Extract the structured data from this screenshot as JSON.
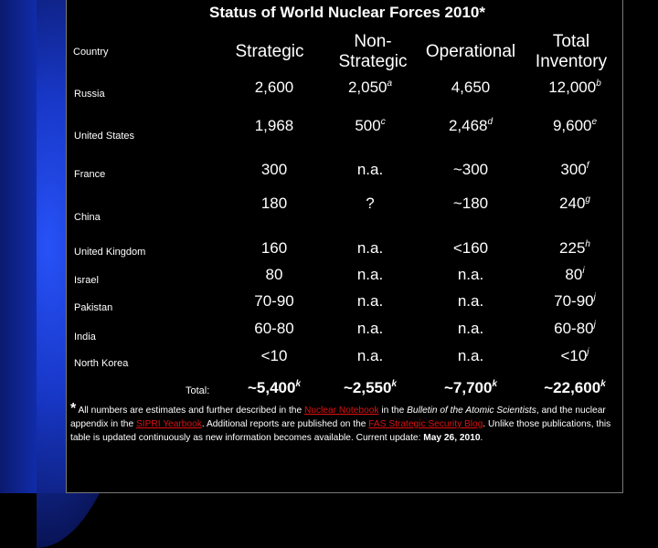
{
  "title": "Status of World Nuclear Forces 2010*",
  "columns": {
    "country": "Country",
    "strategic": "Strategic",
    "nonstrategic_1": "Non-",
    "nonstrategic_2": "Strategic",
    "operational": "Operational",
    "total_1": "Total",
    "total_2": "Inventory"
  },
  "rows": [
    {
      "country": "Russia",
      "strategic": "2,600",
      "nonstrategic": "2,050",
      "nonstrategic_note": "a",
      "operational": "4,650",
      "operational_note": "",
      "total": "12,000",
      "total_note": "b"
    },
    {
      "country": "United States",
      "strategic": "1,968",
      "nonstrategic": "500",
      "nonstrategic_note": "c",
      "operational": "2,468",
      "operational_note": "d",
      "total": "9,600",
      "total_note": "e"
    },
    {
      "country": "France",
      "strategic": "300",
      "nonstrategic": "n.a.",
      "nonstrategic_note": "",
      "operational": "~300",
      "operational_note": "",
      "total": "300",
      "total_note": "f"
    },
    {
      "country": "China",
      "strategic": "180",
      "nonstrategic": "?",
      "nonstrategic_note": "",
      "operational": "~180",
      "operational_note": "",
      "total": "240",
      "total_note": "g"
    },
    {
      "country": "United Kingdom",
      "strategic": "160",
      "nonstrategic": "n.a.",
      "nonstrategic_note": "",
      "operational": "<160",
      "operational_note": "",
      "total": "225",
      "total_note": "h"
    },
    {
      "country": "Israel",
      "strategic": "80",
      "nonstrategic": "n.a.",
      "nonstrategic_note": "",
      "operational": "n.a.",
      "operational_note": "",
      "total": "80",
      "total_note": "i"
    },
    {
      "country": "Pakistan",
      "strategic": "70-90",
      "nonstrategic": "n.a.",
      "nonstrategic_note": "",
      "operational": "n.a.",
      "operational_note": "",
      "total": "70-90",
      "total_note": "j"
    },
    {
      "country": "India",
      "strategic": "60-80",
      "nonstrategic": "n.a.",
      "nonstrategic_note": "",
      "operational": "n.a.",
      "operational_note": "",
      "total": "60-80",
      "total_note": "j"
    },
    {
      "country": "North Korea",
      "strategic": "<10",
      "nonstrategic": "n.a.",
      "nonstrategic_note": "",
      "operational": "n.a.",
      "operational_note": "",
      "total": "<10",
      "total_note": "j"
    }
  ],
  "totals": {
    "label": "Total:",
    "strategic": "~5,400",
    "strategic_note": "k",
    "nonstrategic": "~2,550",
    "nonstrategic_note": "k",
    "operational": "~7,700",
    "operational_note": "k",
    "total": "~22,600",
    "total_note": "k"
  },
  "footnote": {
    "star": "*",
    "t1": " All numbers are estimates and further described in the ",
    "link1": "Nuclear Notebook",
    "t2": " in the ",
    "t3": "Bulletin of the Atomic Scientists",
    "t4": ", and the nuclear appendix in the ",
    "link2": "SIPRI Yearbook",
    "t5": ". Additional reports are published on the ",
    "link3": "FAS Strategic Security Blog",
    "t6": ". Unlike those publications, this table is updated continuously as new information becomes available. Current update: ",
    "date": "May 26, 2010",
    "t7": "."
  }
}
